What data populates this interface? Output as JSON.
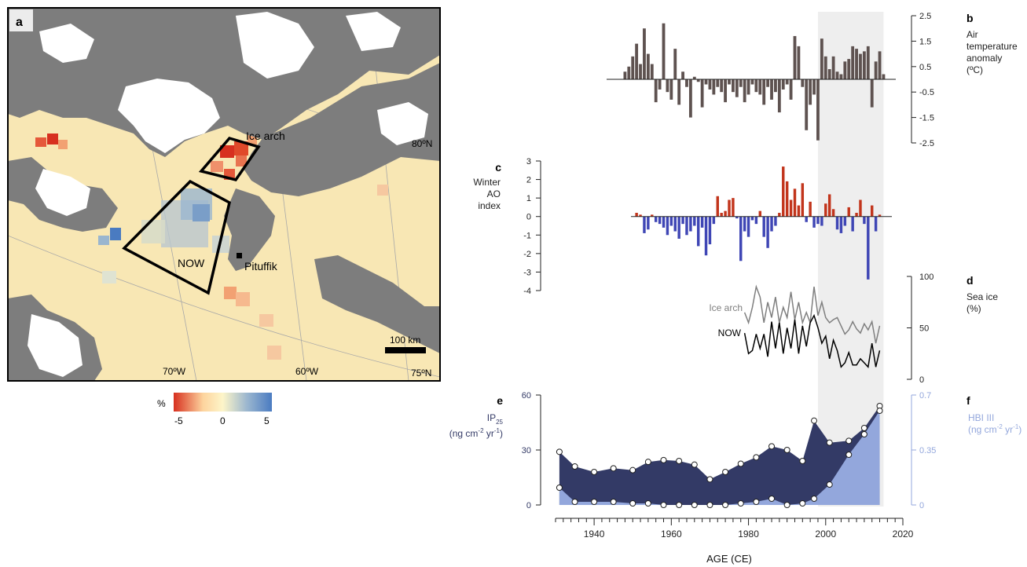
{
  "map": {
    "panel_label": "a",
    "labels": {
      "ice_arch": "Ice arch",
      "now": "NOW",
      "pituffik": "Pituffik",
      "lat_80": "80ºN",
      "lat_75": "75ºN",
      "lon_70": "70ºW",
      "lon_60": "60ºW",
      "scale": "100 km"
    },
    "colorbar": {
      "unit": "%",
      "ticks": [
        "-5",
        "0",
        "5"
      ],
      "colors": [
        "#d7301f",
        "#fdd49e",
        "#fdf5c9",
        "#9ab6cf",
        "#4a7bc1"
      ]
    },
    "colors": {
      "ocean": "#f8e7b4",
      "land": "#7d7d7d",
      "ice_sheet": "#ffffff",
      "warm": "#e04a2a",
      "cool": "#7a9ec8"
    }
  },
  "chart_data": [
    {
      "type": "bar",
      "panel": "b",
      "label_lines": [
        "Air",
        "temperature",
        "anomaly",
        "(ºC)"
      ],
      "x_range": [
        1930,
        2020
      ],
      "ylim": [
        -2.5,
        2.5
      ],
      "yticks": [
        "2.5",
        "1.5",
        "0.5",
        "-0.5",
        "-1.5",
        "-2.5"
      ],
      "color": "#5e5250",
      "shaded_range": [
        1998,
        2015
      ],
      "x": [
        1948,
        1949,
        1950,
        1951,
        1952,
        1953,
        1954,
        1955,
        1956,
        1957,
        1958,
        1959,
        1960,
        1961,
        1962,
        1963,
        1964,
        1965,
        1966,
        1967,
        1968,
        1969,
        1970,
        1971,
        1972,
        1973,
        1974,
        1975,
        1976,
        1977,
        1978,
        1979,
        1980,
        1981,
        1982,
        1983,
        1984,
        1985,
        1986,
        1987,
        1988,
        1989,
        1990,
        1991,
        1992,
        1993,
        1994,
        1995,
        1996,
        1997,
        1998,
        1999,
        2000,
        2001,
        2002,
        2003,
        2004,
        2005,
        2006,
        2007,
        2008,
        2009,
        2010,
        2011,
        2012,
        2013,
        2014,
        2015
      ],
      "values": [
        0.3,
        0.5,
        0.9,
        1.4,
        0.6,
        2.0,
        1.0,
        0.6,
        -0.9,
        -0.4,
        2.2,
        -0.5,
        -0.8,
        1.2,
        -1.0,
        0.3,
        -0.3,
        -1.5,
        0.1,
        -0.1,
        -1.1,
        -0.2,
        -0.4,
        -0.6,
        -0.3,
        -0.5,
        -0.9,
        -0.2,
        -0.5,
        -0.7,
        -0.3,
        -0.9,
        -0.6,
        -0.2,
        -0.5,
        -0.6,
        -1.0,
        -0.3,
        -0.8,
        -0.5,
        -1.3,
        -0.4,
        -0.2,
        -0.8,
        1.7,
        1.3,
        -0.3,
        -2.0,
        -1.0,
        -0.6,
        -2.4,
        1.6,
        0.9,
        0.4,
        0.9,
        0.3,
        0.2,
        0.7,
        0.8,
        1.3,
        1.2,
        1.0,
        1.1,
        1.3,
        -1.1,
        0.7,
        1.1,
        0.2
      ]
    },
    {
      "type": "bar",
      "panel": "c",
      "label_lines": [
        "Winter",
        "AO",
        "index"
      ],
      "ylim": [
        -4,
        3
      ],
      "yticks": [
        "3",
        "2",
        "1",
        "0",
        "-1",
        "-2",
        "-3",
        "-4"
      ],
      "colors": {
        "positive": "#c2351c",
        "negative": "#3f46b5"
      },
      "x": [
        1951,
        1952,
        1953,
        1954,
        1955,
        1956,
        1957,
        1958,
        1959,
        1960,
        1961,
        1962,
        1963,
        1964,
        1965,
        1966,
        1967,
        1968,
        1969,
        1970,
        1971,
        1972,
        1973,
        1974,
        1975,
        1976,
        1977,
        1978,
        1979,
        1980,
        1981,
        1982,
        1983,
        1984,
        1985,
        1986,
        1987,
        1988,
        1989,
        1990,
        1991,
        1992,
        1993,
        1994,
        1995,
        1996,
        1997,
        1998,
        1999,
        2000,
        2001,
        2002,
        2003,
        2004,
        2005,
        2006,
        2007,
        2008,
        2009,
        2010,
        2011,
        2012,
        2013,
        2014
      ],
      "values": [
        0.2,
        0.1,
        -0.9,
        -0.7,
        0.1,
        -0.3,
        -0.4,
        -0.6,
        -1.0,
        -0.5,
        -0.8,
        -1.2,
        -0.4,
        -1.0,
        -0.8,
        -0.5,
        -1.6,
        -0.6,
        -2.1,
        -1.5,
        -0.4,
        1.1,
        0.2,
        0.3,
        0.9,
        1.0,
        -0.1,
        -2.4,
        -0.8,
        -1.1,
        -0.2,
        -0.4,
        0.3,
        -1.1,
        -1.7,
        -0.8,
        -0.5,
        0.2,
        2.7,
        1.9,
        0.9,
        1.5,
        0.6,
        1.8,
        -0.3,
        0.8,
        -0.6,
        -0.4,
        -0.5,
        0.7,
        1.2,
        0.4,
        -0.7,
        -0.9,
        -0.5,
        0.5,
        -0.8,
        0.2,
        0.9,
        -0.4,
        -3.4,
        0.6,
        -0.8,
        0.1
      ]
    },
    {
      "type": "line",
      "panel": "d",
      "label_lines": [
        "Sea ice",
        "(%)"
      ],
      "ylim": [
        0,
        100
      ],
      "yticks": [
        "100",
        "50",
        "0"
      ],
      "series": [
        {
          "name": "Ice arch",
          "color": "#7f7f7f",
          "x": [
            1979,
            1980,
            1981,
            1982,
            1983,
            1984,
            1985,
            1986,
            1987,
            1988,
            1989,
            1990,
            1991,
            1992,
            1993,
            1994,
            1995,
            1996,
            1997,
            1998,
            1999,
            2000,
            2001,
            2002,
            2003,
            2004,
            2005,
            2006,
            2007,
            2008,
            2009,
            2010,
            2011,
            2012,
            2013,
            2014
          ],
          "values": [
            65,
            55,
            70,
            90,
            80,
            55,
            75,
            60,
            80,
            55,
            70,
            60,
            85,
            58,
            75,
            55,
            65,
            55,
            90,
            62,
            75,
            60,
            55,
            58,
            60,
            52,
            44,
            48,
            56,
            49,
            45,
            54,
            48,
            56,
            35,
            52
          ]
        },
        {
          "name": "NOW",
          "color": "#000000",
          "x": [
            1979,
            1980,
            1981,
            1982,
            1983,
            1984,
            1985,
            1986,
            1987,
            1988,
            1989,
            1990,
            1991,
            1992,
            1993,
            1994,
            1995,
            1996,
            1997,
            1998,
            1999,
            2000,
            2001,
            2002,
            2003,
            2004,
            2005,
            2006,
            2007,
            2008,
            2009,
            2010,
            2011,
            2012,
            2013,
            2014
          ],
          "values": [
            45,
            25,
            28,
            44,
            30,
            44,
            22,
            56,
            30,
            55,
            25,
            50,
            30,
            58,
            25,
            52,
            32,
            55,
            62,
            50,
            35,
            42,
            20,
            38,
            28,
            12,
            16,
            26,
            14,
            14,
            20,
            16,
            12,
            35,
            12,
            28
          ]
        }
      ]
    },
    {
      "type": "area",
      "panels": [
        "e",
        "f"
      ],
      "xlabel": "AGE (CE)",
      "xlim": [
        1930,
        2020
      ],
      "xticks": [
        "1940",
        "1960",
        "1980",
        "2000",
        "2020"
      ],
      "series": [
        {
          "name": "IP25",
          "axis_label": [
            "IP",
            "25",
            "(ng cm",
            "-2",
            " yr",
            "-1",
            ")"
          ],
          "color": "#333a66",
          "ylim": [
            0,
            60
          ],
          "yticks": [
            "60",
            "30",
            "0"
          ],
          "x": [
            1931,
            1935,
            1940,
            1945,
            1950,
            1954,
            1958,
            1962,
            1966,
            1970,
            1974,
            1978,
            1982,
            1986,
            1990,
            1994,
            1997,
            2001,
            2006,
            2010,
            2014
          ],
          "values": [
            29,
            21,
            18,
            20,
            19,
            23.5,
            24.5,
            24,
            22,
            14,
            18,
            22.5,
            26,
            32,
            30,
            24,
            46,
            34,
            35,
            42,
            54
          ]
        },
        {
          "name": "HBI III",
          "axis_label": [
            "HBI III",
            "(ng cm",
            "-2",
            " yr",
            "-1",
            ")"
          ],
          "color": "#93a7dc",
          "ylim": [
            0,
            0.7
          ],
          "yticks": [
            "0.7",
            "0.35",
            "0"
          ],
          "x": [
            1931,
            1935,
            1940,
            1945,
            1950,
            1954,
            1958,
            1962,
            1966,
            1970,
            1974,
            1978,
            1982,
            1986,
            1990,
            1994,
            1997,
            2001,
            2006,
            2010,
            2014
          ],
          "values": [
            0.11,
            0.02,
            0.02,
            0.02,
            0.01,
            0.01,
            0.0,
            0.0,
            0.0,
            0.0,
            0.0,
            0.01,
            0.02,
            0.04,
            0.0,
            0.01,
            0.04,
            0.13,
            0.32,
            0.45,
            0.6
          ]
        }
      ]
    }
  ]
}
